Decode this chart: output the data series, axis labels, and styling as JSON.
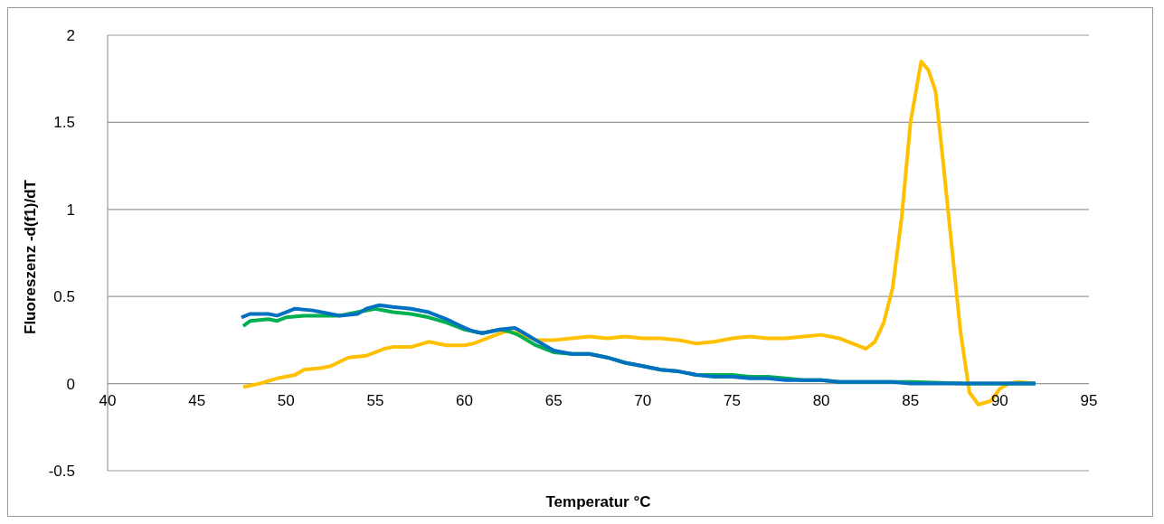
{
  "chart_data": {
    "type": "line",
    "xlabel": "Temperatur °C",
    "ylabel": "Fluoreszenz -d(f1)/dT",
    "xlim": [
      40,
      95
    ],
    "xticks": [
      40,
      45,
      50,
      55,
      60,
      65,
      70,
      75,
      80,
      85,
      90,
      95
    ],
    "ylim": [
      -0.5,
      2
    ],
    "yticks": [
      -0.5,
      0,
      0.5,
      1,
      1.5,
      2
    ],
    "grid": "y",
    "legend": false,
    "marker": "none",
    "line_style": "solid",
    "series": [
      {
        "color": "#ffc000",
        "x": [
          47.6,
          48.5,
          49.5,
          50.5,
          51,
          52,
          52.5,
          53.5,
          54.5,
          55.5,
          56,
          57,
          58,
          59,
          60,
          60.5,
          61.5,
          62.3,
          63,
          64,
          65,
          66,
          67,
          68,
          69,
          70,
          71,
          72,
          73,
          74,
          75,
          76,
          77,
          78,
          79,
          80,
          81,
          82,
          82.5,
          83,
          83.5,
          84,
          84.5,
          85,
          85.6,
          86,
          86.4,
          86.8,
          87.3,
          87.8,
          88.3,
          88.8,
          89.5,
          90,
          90.5,
          91,
          92
        ],
        "values": [
          -0.02,
          0,
          0.03,
          0.05,
          0.08,
          0.09,
          0.1,
          0.15,
          0.16,
          0.2,
          0.21,
          0.21,
          0.24,
          0.22,
          0.22,
          0.23,
          0.27,
          0.3,
          0.29,
          0.25,
          0.25,
          0.26,
          0.27,
          0.26,
          0.27,
          0.26,
          0.26,
          0.25,
          0.23,
          0.24,
          0.26,
          0.27,
          0.26,
          0.26,
          0.27,
          0.28,
          0.26,
          0.22,
          0.2,
          0.24,
          0.35,
          0.55,
          0.95,
          1.5,
          1.85,
          1.8,
          1.68,
          1.3,
          0.8,
          0.3,
          -0.05,
          -0.12,
          -0.1,
          -0.03,
          0,
          0.01,
          0
        ]
      },
      {
        "color": "#00b050",
        "x": [
          47.6,
          48,
          49,
          49.5,
          50,
          51,
          52,
          53,
          54,
          55,
          56,
          57,
          58,
          59,
          60,
          61,
          62,
          62.5,
          63,
          64,
          65,
          66,
          67,
          68,
          69,
          70,
          71,
          72,
          73,
          74,
          75,
          76,
          77,
          78,
          79,
          80,
          81,
          85,
          88,
          92
        ],
        "values": [
          0.33,
          0.36,
          0.37,
          0.36,
          0.38,
          0.39,
          0.39,
          0.39,
          0.41,
          0.43,
          0.41,
          0.4,
          0.38,
          0.35,
          0.31,
          0.29,
          0.31,
          0.3,
          0.28,
          0.22,
          0.18,
          0.17,
          0.17,
          0.15,
          0.12,
          0.1,
          0.08,
          0.07,
          0.05,
          0.05,
          0.05,
          0.04,
          0.04,
          0.03,
          0.02,
          0.02,
          0.01,
          0.01,
          0,
          0
        ]
      },
      {
        "color": "#0070c0",
        "x": [
          47.5,
          48,
          49,
          49.5,
          50,
          50.5,
          51.5,
          52.5,
          53,
          54,
          54.5,
          55.2,
          56,
          57,
          58,
          59,
          60,
          60.5,
          61,
          62,
          62.8,
          63,
          64,
          65,
          66,
          67,
          68,
          69,
          70,
          71,
          72,
          73,
          74,
          75,
          76,
          77,
          78,
          79,
          80,
          81,
          84,
          85,
          89,
          92
        ],
        "values": [
          0.38,
          0.4,
          0.4,
          0.39,
          0.41,
          0.43,
          0.42,
          0.4,
          0.39,
          0.4,
          0.43,
          0.45,
          0.44,
          0.43,
          0.41,
          0.37,
          0.32,
          0.3,
          0.29,
          0.31,
          0.32,
          0.31,
          0.25,
          0.19,
          0.17,
          0.17,
          0.15,
          0.12,
          0.1,
          0.08,
          0.07,
          0.05,
          0.04,
          0.04,
          0.03,
          0.03,
          0.02,
          0.02,
          0.02,
          0.01,
          0.01,
          0,
          0,
          0
        ]
      }
    ]
  }
}
